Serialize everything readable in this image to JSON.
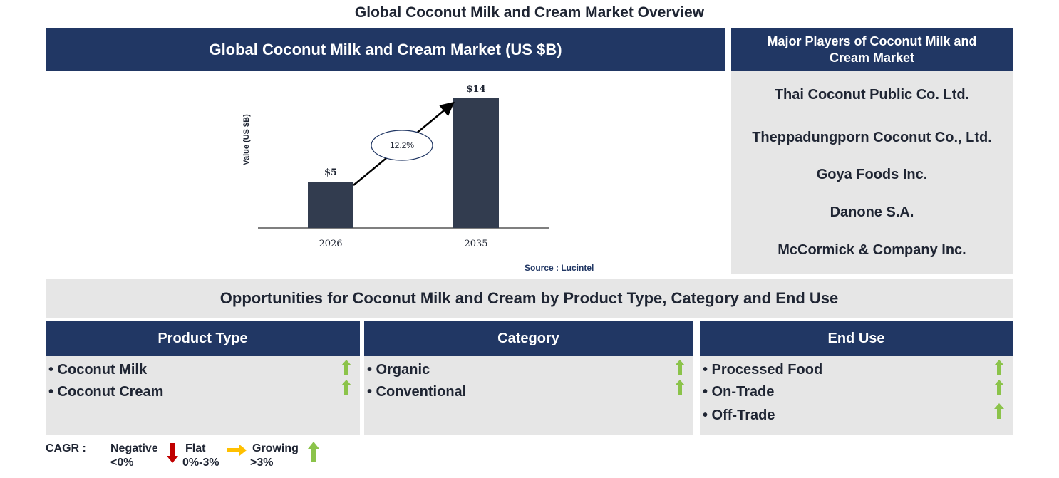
{
  "page_title": "Global Coconut Milk and Cream Market Overview",
  "market_header": "Global Coconut Milk and Cream Market (US $B)",
  "chart_data": {
    "type": "bar",
    "categories": [
      "2026",
      "2035"
    ],
    "values": [
      5,
      14
    ],
    "data_labels": [
      "$5",
      "$14"
    ],
    "ylabel": "Value (US $B)",
    "cagr_label": "12.2%",
    "bar_color": "#323c4f",
    "ylim": [
      0,
      15
    ]
  },
  "source": "Source : Lucintel",
  "players": {
    "title": "Major Players of Coconut Milk and Cream Market",
    "items": [
      "Thai Coconut Public Co. Ltd.",
      "Theppadungporn Coconut Co., Ltd.",
      "Goya Foods Inc.",
      "Danone S.A.",
      "McCormick & Company Inc."
    ]
  },
  "opportunities_title": "Opportunities for Coconut Milk and Cream by Product Type, Category and End Use",
  "segments": [
    {
      "title": "Product Type",
      "items": [
        "• Coconut Milk",
        "• Coconut Cream"
      ]
    },
    {
      "title": "Category",
      "items": [
        "• Organic",
        "• Conventional"
      ]
    },
    {
      "title": "End Use",
      "items": [
        "• Processed Food",
        "• On-Trade",
        "• Off-Trade"
      ]
    }
  ],
  "legend": {
    "cagr": "CAGR :",
    "negative": "Negative",
    "negative_range": "<0%",
    "flat": "Flat",
    "flat_range": "0%-3%",
    "growing": "Growing",
    "growing_range": ">3%"
  },
  "colors": {
    "navy": "#213764",
    "panel_grey": "#e6e6e6",
    "growth_green": "#8bc34a",
    "negative_red": "#c00000",
    "flat_orange": "#ffc000"
  }
}
